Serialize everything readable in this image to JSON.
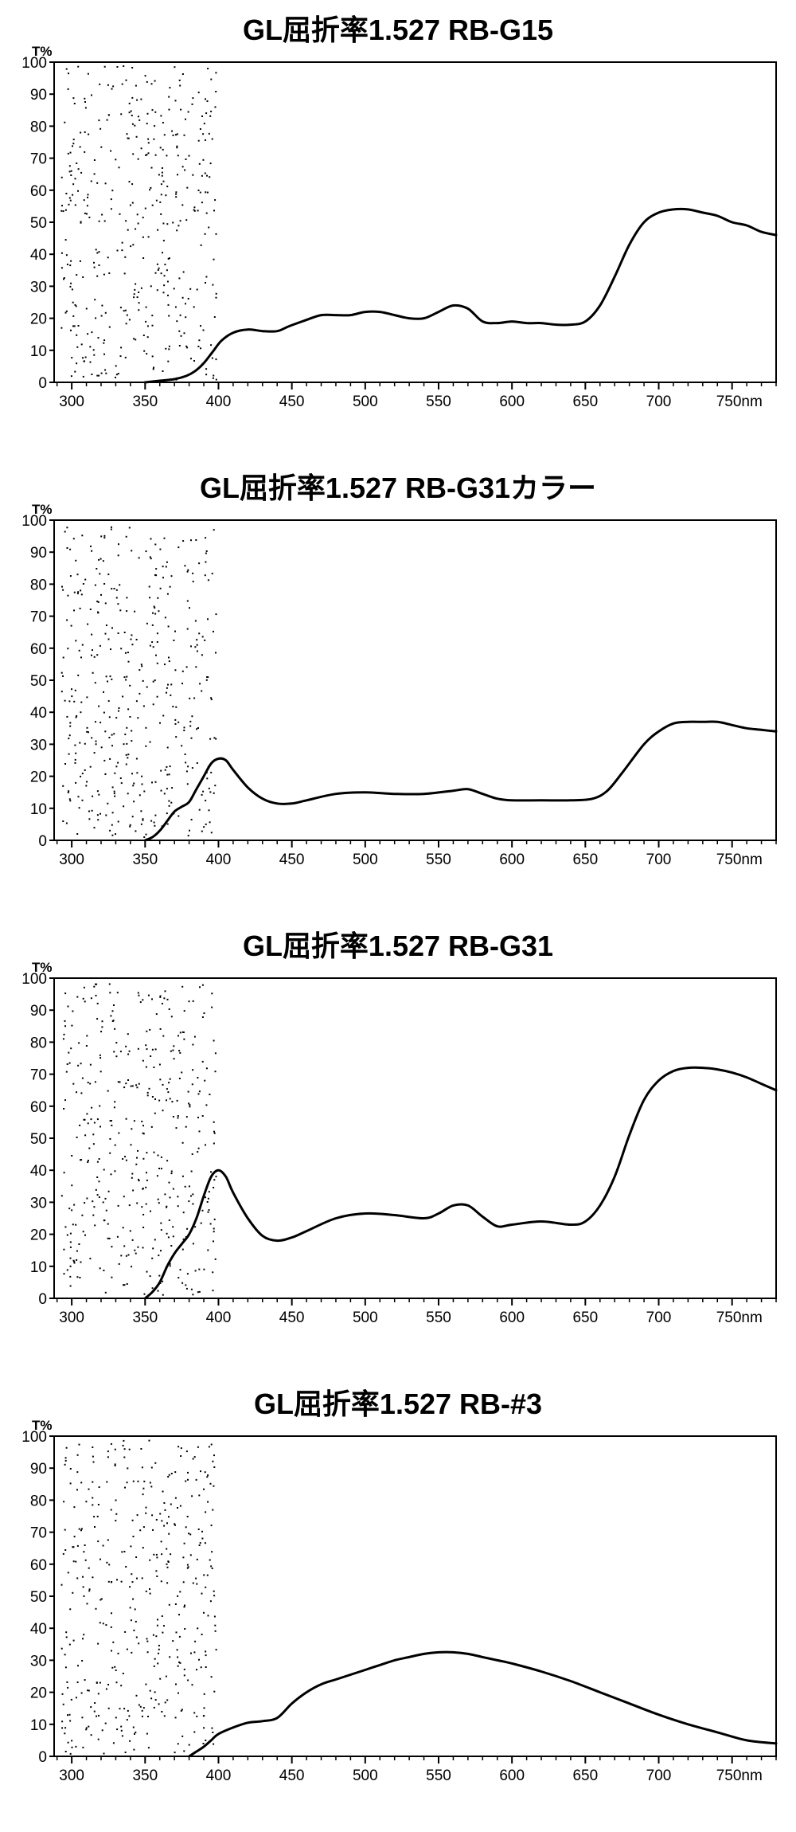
{
  "chart_data": [
    {
      "type": "line",
      "title": "GL屈折率1.527 RB-G15",
      "ylabel": "T%",
      "xunit": "nm",
      "xlim": [
        288,
        780
      ],
      "ylim": [
        0,
        100
      ],
      "xticks": [
        300,
        350,
        400,
        450,
        500,
        550,
        600,
        650,
        700,
        750
      ],
      "yticks": [
        0,
        10,
        20,
        30,
        40,
        50,
        60,
        70,
        80,
        90,
        100
      ],
      "grid": false,
      "series": [
        {
          "x": [
            350,
            360,
            370,
            378,
            384,
            390,
            396,
            402,
            410,
            420,
            430,
            440,
            448,
            460,
            470,
            480,
            490,
            500,
            510,
            520,
            530,
            540,
            550,
            560,
            570,
            580,
            590,
            600,
            610,
            620,
            630,
            640,
            650,
            660,
            670,
            680,
            690,
            700,
            710,
            720,
            730,
            740,
            750,
            760,
            770,
            780
          ],
          "y": [
            0,
            0.5,
            1,
            2,
            3.5,
            6,
            9.5,
            13,
            15.5,
            16.5,
            16,
            16,
            17.5,
            19.5,
            21,
            21,
            21,
            22,
            22,
            21,
            20,
            20,
            22,
            24,
            23,
            19,
            18.5,
            19,
            18.5,
            18.5,
            18,
            18,
            19,
            24,
            33,
            43,
            50,
            53,
            54,
            54,
            53,
            52,
            50,
            49,
            47,
            46
          ]
        }
      ]
    },
    {
      "type": "line",
      "title": "GL屈折率1.527 RB-G31カラー",
      "ylabel": "T%",
      "xunit": "nm",
      "xlim": [
        288,
        780
      ],
      "ylim": [
        0,
        100
      ],
      "xticks": [
        300,
        350,
        400,
        450,
        500,
        550,
        600,
        650,
        700,
        750
      ],
      "yticks": [
        0,
        10,
        20,
        30,
        40,
        50,
        60,
        70,
        80,
        90,
        100
      ],
      "grid": false,
      "series": [
        {
          "x": [
            350,
            355,
            360,
            365,
            370,
            375,
            380,
            385,
            390,
            395,
            400,
            405,
            410,
            420,
            430,
            440,
            450,
            460,
            480,
            500,
            520,
            540,
            560,
            570,
            580,
            590,
            600,
            620,
            640,
            655,
            665,
            675,
            690,
            700,
            710,
            720,
            730,
            740,
            750,
            760,
            770,
            780
          ],
          "y": [
            0,
            1,
            3,
            6,
            9,
            10.5,
            12,
            16,
            20,
            24,
            25.5,
            25,
            22,
            16.5,
            13,
            11.5,
            11.5,
            12.5,
            14.5,
            15,
            14.5,
            14.5,
            15.5,
            16,
            14.5,
            13,
            12.5,
            12.5,
            12.5,
            13,
            15.5,
            21,
            30,
            34,
            36.5,
            37,
            37,
            37,
            36,
            35,
            34.5,
            34
          ]
        }
      ]
    },
    {
      "type": "line",
      "title": "GL屈折率1.527 RB-G31",
      "ylabel": "T%",
      "xunit": "nm",
      "xlim": [
        288,
        780
      ],
      "ylim": [
        0,
        100
      ],
      "xticks": [
        300,
        350,
        400,
        450,
        500,
        550,
        600,
        650,
        700,
        750
      ],
      "yticks": [
        0,
        10,
        20,
        30,
        40,
        50,
        60,
        70,
        80,
        90,
        100
      ],
      "grid": false,
      "series": [
        {
          "x": [
            350,
            355,
            360,
            365,
            370,
            375,
            380,
            385,
            390,
            395,
            400,
            405,
            410,
            420,
            430,
            440,
            450,
            460,
            480,
            500,
            520,
            540,
            550,
            560,
            570,
            580,
            590,
            600,
            620,
            640,
            650,
            660,
            670,
            680,
            690,
            700,
            710,
            720,
            730,
            740,
            750,
            760,
            770,
            780
          ],
          "y": [
            0,
            2,
            5,
            10,
            14,
            17,
            20,
            25,
            32,
            38,
            40,
            38,
            33,
            25,
            19.5,
            18,
            19,
            21,
            25,
            26.5,
            26,
            25,
            26.5,
            29,
            29,
            25.5,
            22.5,
            23,
            24,
            23,
            24,
            29,
            38,
            51,
            62,
            68,
            71,
            72,
            72,
            71.5,
            70.5,
            69,
            67,
            65
          ]
        }
      ]
    },
    {
      "type": "line",
      "title": "GL屈折率1.527 RB-#3",
      "ylabel": "T%",
      "xunit": "nm",
      "xlim": [
        288,
        780
      ],
      "ylim": [
        0,
        100
      ],
      "xticks": [
        300,
        350,
        400,
        450,
        500,
        550,
        600,
        650,
        700,
        750
      ],
      "yticks": [
        0,
        10,
        20,
        30,
        40,
        50,
        60,
        70,
        80,
        90,
        100
      ],
      "grid": false,
      "series": [
        {
          "x": [
            380,
            385,
            390,
            395,
            400,
            410,
            420,
            430,
            440,
            450,
            460,
            470,
            480,
            490,
            500,
            510,
            520,
            530,
            540,
            550,
            560,
            570,
            580,
            590,
            600,
            620,
            640,
            660,
            680,
            700,
            720,
            740,
            760,
            780
          ],
          "y": [
            0,
            1.5,
            3,
            5,
            7,
            9,
            10.5,
            11,
            12,
            16.5,
            20,
            22.5,
            24,
            25.5,
            27,
            28.5,
            30,
            31,
            32,
            32.5,
            32.5,
            32,
            31,
            30,
            29,
            26.5,
            23.5,
            20,
            16.5,
            13,
            10,
            7.5,
            5,
            4
          ]
        }
      ]
    }
  ]
}
